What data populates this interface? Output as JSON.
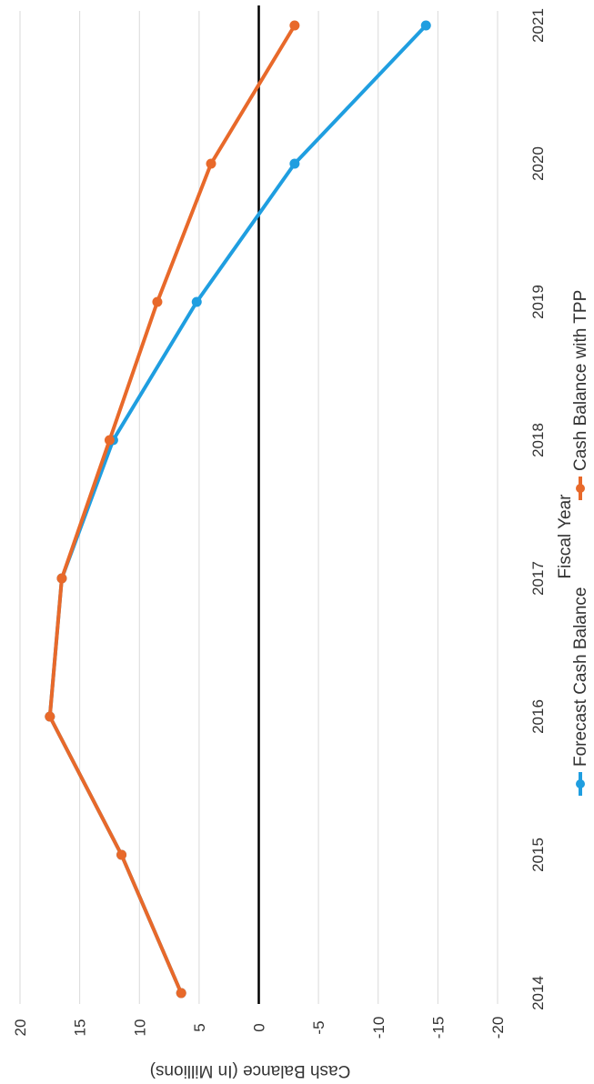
{
  "chart_data": {
    "type": "line",
    "xlabel": "Fiscal Year",
    "ylabel": "Cash Balance (In Millions)",
    "x": [
      "2014",
      "2015",
      "2016",
      "2017",
      "2018",
      "2019",
      "2020",
      "2021"
    ],
    "ylim": [
      -20,
      20
    ],
    "yticks": [
      20,
      15,
      10,
      5,
      0,
      -5,
      -10,
      -15,
      -20
    ],
    "grid": true,
    "orientation": "rotated 90 degrees counter-clockwise",
    "legend_position": "bottom",
    "series": [
      {
        "name": "Forecast Cash Balance",
        "color": "#1f9ee0",
        "values": [
          6.5,
          11.5,
          17.5,
          16.5,
          12.2,
          5.2,
          -3.0,
          -14.0
        ]
      },
      {
        "name": "Cash Balance with TPP",
        "color": "#e8692a",
        "values": [
          6.5,
          11.5,
          17.5,
          16.5,
          12.5,
          8.5,
          4.0,
          -3.0
        ]
      }
    ]
  }
}
